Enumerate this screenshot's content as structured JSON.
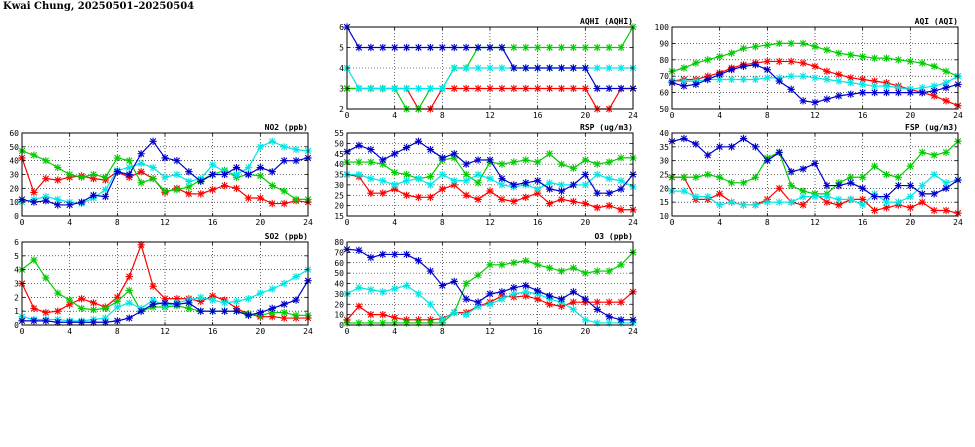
{
  "page": {
    "title": "Kwai Chung, 20250501–20250504"
  },
  "colors": {
    "red": "#ff0000",
    "green": "#00cc00",
    "cyan": "#00e5e5",
    "blue": "#0000cc",
    "grid": "#000000"
  },
  "chart_data": [
    {
      "id": "aqhi",
      "type": "line",
      "title": "AQHI (AQHI)",
      "xlim": [
        0,
        24
      ],
      "xticks": [
        0,
        4,
        8,
        12,
        16,
        20,
        24
      ],
      "ylim": [
        2,
        6
      ],
      "yticks": [
        2,
        3,
        4,
        5,
        6
      ],
      "grid": true,
      "series": [
        {
          "color": "red",
          "values": [
            3,
            3,
            3,
            3,
            3,
            3,
            2,
            2,
            3,
            3,
            3,
            3,
            3,
            3,
            3,
            3,
            3,
            3,
            3,
            3,
            3,
            2,
            2,
            3,
            3
          ]
        },
        {
          "color": "green",
          "values": [
            3,
            3,
            3,
            3,
            3,
            2,
            2,
            3,
            3,
            4,
            4,
            5,
            5,
            5,
            5,
            5,
            5,
            5,
            5,
            5,
            5,
            5,
            5,
            5,
            6
          ]
        },
        {
          "color": "cyan",
          "values": [
            4,
            3,
            3,
            3,
            3,
            3,
            3,
            3,
            3,
            4,
            4,
            4,
            4,
            4,
            4,
            4,
            4,
            4,
            4,
            4,
            4,
            4,
            4,
            4,
            4
          ]
        },
        {
          "color": "blue",
          "values": [
            6,
            5,
            5,
            5,
            5,
            5,
            5,
            5,
            5,
            5,
            5,
            5,
            5,
            5,
            4,
            4,
            4,
            4,
            4,
            4,
            4,
            3,
            3,
            3,
            3
          ]
        }
      ]
    },
    {
      "id": "aqi",
      "type": "line",
      "title": "AQI (AQI)",
      "xlim": [
        0,
        24
      ],
      "xticks": [
        0,
        4,
        8,
        12,
        16,
        20,
        24
      ],
      "ylim": [
        50,
        100
      ],
      "yticks": [
        50,
        60,
        70,
        80,
        90,
        100
      ],
      "grid": true,
      "series": [
        {
          "color": "red",
          "values": [
            67,
            68,
            68,
            70,
            72,
            75,
            77,
            78,
            79,
            79,
            79,
            78,
            76,
            73,
            71,
            69,
            68,
            67,
            66,
            64,
            62,
            60,
            58,
            55,
            52
          ]
        },
        {
          "color": "green",
          "values": [
            73,
            75,
            78,
            80,
            82,
            84,
            87,
            88,
            89,
            90,
            90,
            90,
            88,
            86,
            84,
            83,
            82,
            81,
            81,
            80,
            79,
            78,
            76,
            73,
            70
          ]
        },
        {
          "color": "cyan",
          "values": [
            67,
            67,
            67,
            68,
            68,
            68,
            68,
            68,
            69,
            69,
            70,
            70,
            69,
            68,
            67,
            66,
            65,
            64,
            64,
            63,
            62,
            63,
            64,
            66,
            70
          ]
        },
        {
          "color": "blue",
          "values": [
            66,
            64,
            65,
            68,
            71,
            74,
            76,
            77,
            74,
            67,
            62,
            55,
            54,
            56,
            58,
            59,
            60,
            60,
            60,
            60,
            60,
            60,
            61,
            63,
            65
          ]
        }
      ]
    },
    {
      "id": "no2",
      "type": "line",
      "title": "NO2 (ppb)",
      "xlim": [
        0,
        24
      ],
      "xticks": [
        0,
        4,
        8,
        12,
        16,
        20,
        24
      ],
      "ylim": [
        0,
        60
      ],
      "yticks": [
        0,
        10,
        20,
        30,
        40,
        50,
        60
      ],
      "grid": true,
      "series": [
        {
          "color": "red",
          "values": [
            42,
            17,
            27,
            26,
            28,
            29,
            27,
            26,
            32,
            28,
            32,
            27,
            17,
            20,
            16,
            16,
            19,
            22,
            20,
            13,
            13,
            9,
            9,
            11,
            10
          ]
        },
        {
          "color": "green",
          "values": [
            47,
            44,
            40,
            35,
            30,
            28,
            30,
            28,
            42,
            40,
            24,
            27,
            18,
            19,
            21,
            26,
            30,
            33,
            28,
            30,
            29,
            22,
            18,
            12,
            12
          ]
        },
        {
          "color": "cyan",
          "values": [
            10,
            12,
            14,
            12,
            10,
            9,
            13,
            19,
            33,
            35,
            38,
            35,
            28,
            30,
            25,
            27,
            37,
            32,
            30,
            35,
            50,
            54,
            50,
            48,
            47
          ]
        },
        {
          "color": "blue",
          "values": [
            12,
            10,
            11,
            8,
            8,
            10,
            15,
            14,
            32,
            30,
            45,
            54,
            42,
            40,
            32,
            25,
            30,
            30,
            35,
            30,
            35,
            32,
            40,
            40,
            42
          ]
        }
      ]
    },
    {
      "id": "rsp",
      "type": "line",
      "title": "RSP (ug/m3)",
      "xlim": [
        0,
        24
      ],
      "xticks": [
        0,
        4,
        8,
        12,
        16,
        20,
        24
      ],
      "ylim": [
        15,
        55
      ],
      "yticks": [
        15,
        20,
        25,
        30,
        35,
        40,
        45,
        50,
        55
      ],
      "grid": true,
      "series": [
        {
          "color": "red",
          "values": [
            35,
            34,
            26,
            26,
            28,
            25,
            24,
            24,
            28,
            30,
            25,
            23,
            27,
            23,
            22,
            24,
            26,
            21,
            23,
            22,
            21,
            19,
            20,
            18,
            18
          ]
        },
        {
          "color": "green",
          "values": [
            41,
            41,
            41,
            40,
            36,
            35,
            33,
            34,
            42,
            43,
            35,
            31,
            41,
            40,
            41,
            42,
            41,
            45,
            40,
            38,
            42,
            40,
            41,
            43,
            43
          ]
        },
        {
          "color": "cyan",
          "values": [
            35,
            35,
            33,
            32,
            30,
            32,
            33,
            30,
            35,
            32,
            32,
            35,
            33,
            30,
            29,
            30,
            28,
            31,
            30,
            30,
            30,
            35,
            33,
            32,
            29
          ]
        },
        {
          "color": "blue",
          "values": [
            46,
            49,
            47,
            42,
            45,
            48,
            51,
            47,
            43,
            45,
            40,
            42,
            42,
            33,
            30,
            31,
            32,
            28,
            27,
            30,
            35,
            26,
            26,
            28,
            35
          ]
        }
      ]
    },
    {
      "id": "fsp",
      "type": "line",
      "title": "FSP (ug/m3)",
      "xlim": [
        0,
        24
      ],
      "xticks": [
        0,
        4,
        8,
        12,
        16,
        20,
        24
      ],
      "ylim": [
        10,
        40
      ],
      "yticks": [
        10,
        15,
        20,
        25,
        30,
        35,
        40
      ],
      "grid": true,
      "series": [
        {
          "color": "red",
          "values": [
            24,
            24,
            16,
            16,
            18,
            15,
            14,
            14,
            16,
            20,
            15,
            14,
            18,
            15,
            14,
            16,
            16,
            12,
            13,
            14,
            13,
            15,
            12,
            12,
            11
          ]
        },
        {
          "color": "green",
          "values": [
            24,
            24,
            24,
            25,
            24,
            22,
            22,
            24,
            31,
            33,
            21,
            19,
            18,
            18,
            22,
            24,
            24,
            28,
            25,
            24,
            28,
            33,
            32,
            33,
            37
          ]
        },
        {
          "color": "cyan",
          "values": [
            19,
            19,
            17,
            17,
            14,
            15,
            14,
            14,
            15,
            15,
            15,
            17,
            17,
            17,
            16,
            16,
            14,
            18,
            15,
            15,
            17,
            21,
            25,
            22,
            23
          ]
        },
        {
          "color": "blue",
          "values": [
            37,
            38,
            36,
            32,
            35,
            35,
            38,
            35,
            30,
            33,
            26,
            27,
            29,
            21,
            21,
            22,
            20,
            17,
            17,
            21,
            21,
            18,
            18,
            20,
            23
          ]
        }
      ]
    },
    {
      "id": "so2",
      "type": "line",
      "title": "SO2 (ppb)",
      "xlim": [
        0,
        24
      ],
      "xticks": [
        0,
        4,
        8,
        12,
        16,
        20,
        24
      ],
      "ylim": [
        0,
        6
      ],
      "yticks": [
        0,
        1,
        2,
        3,
        4,
        5,
        6
      ],
      "grid": true,
      "series": [
        {
          "color": "red",
          "values": [
            3.0,
            1.2,
            0.9,
            1.0,
            1.5,
            1.9,
            1.6,
            1.3,
            2.0,
            3.5,
            5.8,
            2.8,
            1.9,
            1.9,
            1.9,
            1.7,
            2.1,
            1.8,
            1.2,
            0.8,
            0.6,
            0.6,
            0.5,
            0.5,
            0.5
          ]
        },
        {
          "color": "green",
          "values": [
            4.0,
            4.7,
            3.4,
            2.3,
            1.8,
            1.2,
            1.1,
            1.2,
            1.7,
            2.5,
            1.0,
            1.3,
            1.3,
            1.4,
            1.2,
            1.0,
            1.0,
            1.0,
            1.0,
            0.8,
            0.7,
            0.9,
            0.9,
            0.7,
            0.7
          ]
        },
        {
          "color": "cyan",
          "values": [
            0.6,
            0.4,
            0.4,
            0.4,
            0.3,
            0.3,
            0.4,
            0.5,
            1.3,
            1.6,
            1.2,
            1.8,
            1.4,
            1.6,
            1.8,
            2.0,
            1.8,
            1.6,
            1.7,
            1.9,
            2.3,
            2.6,
            3.0,
            3.5,
            4.0
          ]
        },
        {
          "color": "blue",
          "values": [
            0.3,
            0.3,
            0.3,
            0.2,
            0.2,
            0.2,
            0.2,
            0.2,
            0.3,
            0.5,
            1.0,
            1.5,
            1.6,
            1.5,
            1.6,
            1.0,
            1.0,
            1.0,
            1.0,
            0.7,
            0.9,
            1.2,
            1.5,
            1.8,
            3.2
          ]
        }
      ]
    },
    {
      "id": "o3",
      "type": "line",
      "title": "O3 (ppb)",
      "xlim": [
        0,
        24
      ],
      "xticks": [
        0,
        4,
        8,
        12,
        16,
        20,
        24
      ],
      "ylim": [
        0,
        80
      ],
      "yticks": [
        0,
        10,
        20,
        30,
        40,
        50,
        60,
        70,
        80
      ],
      "grid": true,
      "series": [
        {
          "color": "red",
          "values": [
            5,
            18,
            10,
            10,
            7,
            5,
            5,
            5,
            6,
            12,
            12,
            18,
            22,
            28,
            27,
            28,
            25,
            20,
            18,
            22,
            22,
            22,
            22,
            22,
            32
          ]
        },
        {
          "color": "green",
          "values": [
            2,
            2,
            2,
            2,
            2,
            2,
            2,
            2,
            2,
            12,
            40,
            48,
            58,
            58,
            60,
            62,
            58,
            55,
            52,
            55,
            50,
            52,
            52,
            58,
            70
          ]
        },
        {
          "color": "cyan",
          "values": [
            30,
            36,
            34,
            32,
            35,
            38,
            30,
            20,
            5,
            12,
            10,
            18,
            20,
            25,
            30,
            32,
            30,
            25,
            22,
            15,
            5,
            2,
            2,
            2,
            2
          ]
        },
        {
          "color": "blue",
          "values": [
            73,
            72,
            65,
            68,
            68,
            68,
            62,
            52,
            38,
            42,
            25,
            22,
            30,
            32,
            36,
            38,
            33,
            28,
            25,
            32,
            25,
            15,
            8,
            5,
            5
          ]
        }
      ]
    }
  ]
}
